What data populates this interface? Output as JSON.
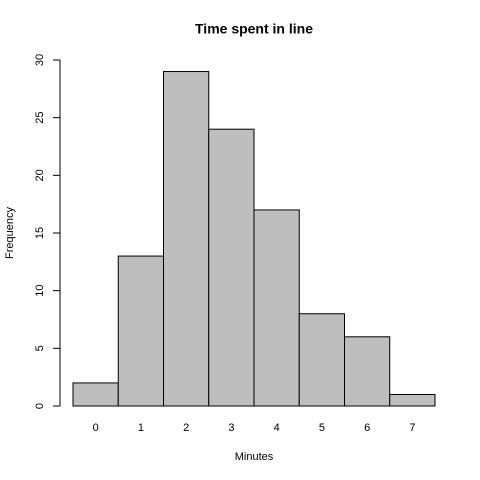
{
  "chart_data": {
    "type": "bar",
    "title": "Time spent in line",
    "x_label": "Minutes",
    "y_label": "Frequency",
    "categories": [
      "0",
      "1",
      "2",
      "3",
      "4",
      "5",
      "6",
      "7"
    ],
    "values": [
      2,
      13,
      29,
      24,
      17,
      8,
      6,
      1
    ],
    "color": "#bebebe",
    "ylim": [
      0,
      30
    ],
    "yticks": [
      0,
      5,
      10,
      15,
      20,
      25,
      30
    ],
    "grid": false
  }
}
